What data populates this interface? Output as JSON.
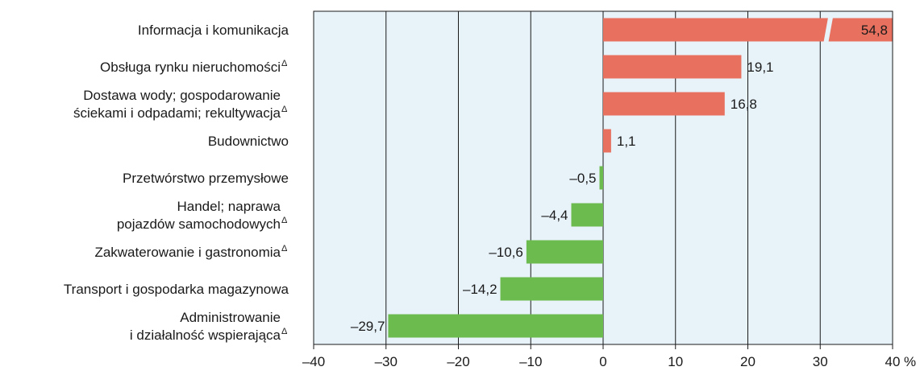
{
  "chart_data": {
    "type": "bar",
    "orientation": "horizontal",
    "unit": "%",
    "xlim": [
      -40,
      40
    ],
    "x_ticks": [
      -40,
      -30,
      -20,
      -10,
      0,
      10,
      20,
      30,
      40
    ],
    "x_tick_labels": [
      "–40",
      "–30",
      "–20",
      "–10",
      "0",
      "10",
      "20",
      "30",
      "40"
    ],
    "grid": true,
    "legend": null,
    "colors": {
      "positive": "#e8705f",
      "negative": "#6cbb4e",
      "plot_bg": "#e7f2f9",
      "grid": "#1a1a1a"
    },
    "categories": [
      {
        "lines": [
          "Informacja i komunikacja"
        ],
        "note": "",
        "value": 54.8,
        "label": "54,8",
        "truncated": true
      },
      {
        "lines": [
          "Obsługa rynku nieruchomości"
        ],
        "note": "Δ",
        "value": 19.1,
        "label": "19,1",
        "truncated": false
      },
      {
        "lines": [
          "Dostawa wody; gospodarowanie",
          "ściekami i odpadami; rekultywacja"
        ],
        "note": "Δ",
        "value": 16.8,
        "label": "16,8",
        "truncated": false
      },
      {
        "lines": [
          "Budownictwo"
        ],
        "note": "",
        "value": 1.1,
        "label": "1,1",
        "truncated": false
      },
      {
        "lines": [
          "Przetwórstwo przemysłowe"
        ],
        "note": "",
        "value": -0.5,
        "label": "–0,5",
        "truncated": false
      },
      {
        "lines": [
          "Handel; naprawa",
          "pojazdów samochodowych"
        ],
        "note": "Δ",
        "value": -4.4,
        "label": "–4,4",
        "truncated": false
      },
      {
        "lines": [
          "Zakwaterowanie i gastronomia"
        ],
        "note": "Δ",
        "value": -10.6,
        "label": "–10,6",
        "truncated": false
      },
      {
        "lines": [
          "Transport i gospodarka magazynowa"
        ],
        "note": "",
        "value": -14.2,
        "label": "–14,2",
        "truncated": false
      },
      {
        "lines": [
          "Administrowanie",
          "i działalność wspierająca"
        ],
        "note": "Δ",
        "value": -29.7,
        "label": "–29,7",
        "truncated": false
      }
    ]
  }
}
